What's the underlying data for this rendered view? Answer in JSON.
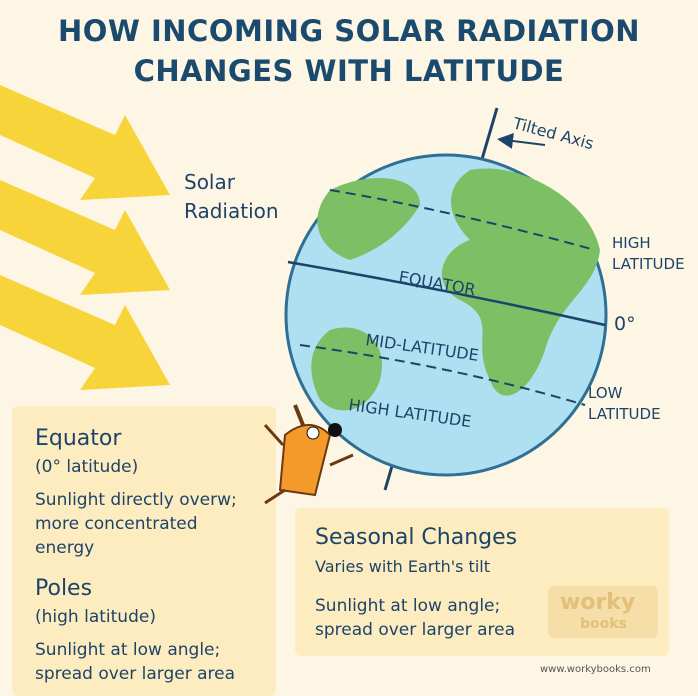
{
  "header": {
    "title_lines": [
      "HOW INCOMING SOLAR RADIATION",
      "CHANGES WITH LATITUDE"
    ]
  },
  "radiation_label": [
    "Solar",
    "Radiation"
  ],
  "globe": {
    "axis_label": "Tilted Axis",
    "equator": "EQUATOR",
    "mid_latitude": "MID-LATITUDE",
    "high_latitude": "HIGH LATITUDE",
    "side_labels": {
      "high": [
        "HIGH",
        "LATITUDE"
      ],
      "zero": "0°",
      "low": [
        "LOW",
        "LATITUDE"
      ]
    }
  },
  "panels": [
    {
      "heading": "Equator",
      "subheading": "(0° latitude)",
      "text_lines": [
        "Sunlight directly overw;",
        "more concentrated",
        "energy"
      ]
    },
    {
      "heading": "Poles",
      "subheading": "(high latitude)",
      "text_lines": [
        "Sunlight at low angle;",
        "spread over larger area"
      ]
    },
    {
      "heading": "Seasonal Changes",
      "subheading": "Varies with Earth's tilt",
      "text_lines": [
        "Sunlight at low angle;",
        "spread over larger area"
      ]
    }
  ],
  "footer": {
    "logo": [
      "worky",
      "books"
    ],
    "url": "www.workybooks.com"
  }
}
